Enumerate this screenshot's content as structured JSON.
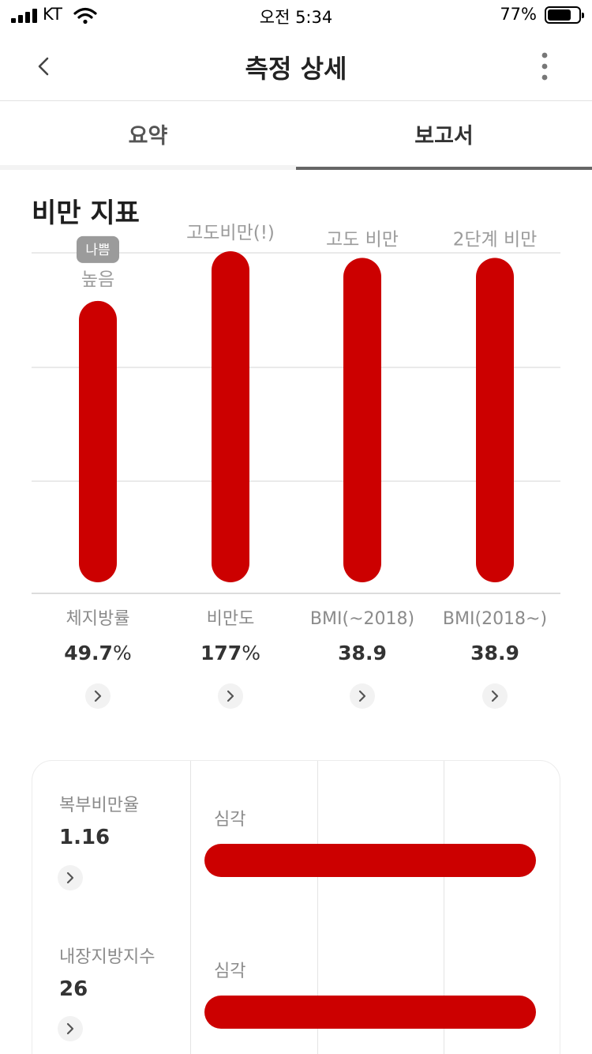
{
  "status_bar": {
    "carrier": "KT",
    "time": "오전 5:34",
    "battery_text": "77%",
    "battery_level": 0.77,
    "icons": [
      "signal-icon",
      "wifi-icon",
      "battery-icon"
    ]
  },
  "header": {
    "title": "측정 상세",
    "icons": [
      "chevron-left-icon",
      "more-vertical-icon"
    ]
  },
  "tabs": [
    {
      "label": "요약",
      "selected": false
    },
    {
      "label": "보고서",
      "selected": true
    }
  ],
  "section": {
    "title": "비만 지표"
  },
  "colors": {
    "bar": "#cc0000",
    "badge": "#9b9b9b",
    "label": "#9b9b9b"
  },
  "chart_data": {
    "type": "bar",
    "categories": [
      "체지방률",
      "비만도",
      "BMI(~2018)",
      "BMI(2018~)"
    ],
    "level_labels": [
      "높음",
      "고도비만(!)",
      "고도 비만",
      "2단계 비만"
    ],
    "badge": {
      "category": "체지방률",
      "text": "나쁨"
    },
    "values": [
      0.85,
      1.0,
      0.98,
      0.98
    ],
    "value_note": "relative bar height, 0–1",
    "grid": true,
    "ylim": [
      0,
      1
    ]
  },
  "metrics": [
    {
      "label": "체지방률",
      "value": "49.7",
      "unit": "%"
    },
    {
      "label": "비만도",
      "value": "177",
      "unit": "%"
    },
    {
      "label": "BMI(~2018)",
      "value": "38.9",
      "unit": ""
    },
    {
      "label": "BMI(2018~)",
      "value": "38.9",
      "unit": ""
    }
  ],
  "card": {
    "rows": [
      {
        "label": "복부비만율",
        "value": "1.16",
        "level": "심각",
        "level_fill": 1.0
      },
      {
        "label": "내장지방지수",
        "value": "26",
        "level": "심각",
        "level_fill": 1.0
      }
    ]
  }
}
